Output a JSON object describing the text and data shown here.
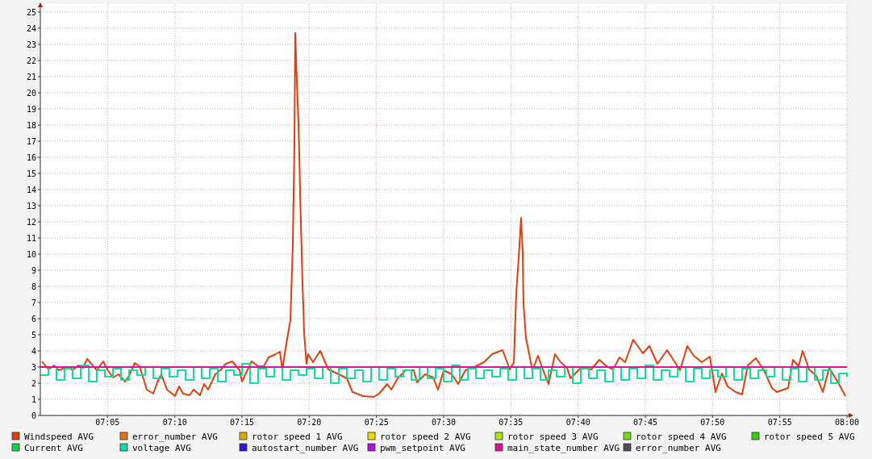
{
  "chart_data": {
    "type": "line",
    "xlim": [
      7,
      8
    ],
    "xticks": [
      {
        "value": 7.0833,
        "label": "07:05"
      },
      {
        "value": 7.1667,
        "label": "07:10"
      },
      {
        "value": 7.25,
        "label": "07:15"
      },
      {
        "value": 7.3333,
        "label": "07:20"
      },
      {
        "value": 7.4167,
        "label": "07:25"
      },
      {
        "value": 7.5,
        "label": "07:30"
      },
      {
        "value": 7.5833,
        "label": "07:35"
      },
      {
        "value": 7.6667,
        "label": "07:40"
      },
      {
        "value": 7.75,
        "label": "07:45"
      },
      {
        "value": 7.8333,
        "label": "07:50"
      },
      {
        "value": 7.9167,
        "label": "07:55"
      },
      {
        "value": 8,
        "label": "08:00"
      }
    ],
    "ylim": [
      0,
      25
    ],
    "yticks": [
      0,
      1,
      2,
      3,
      4,
      5,
      6,
      7,
      8,
      9,
      10,
      11,
      12,
      13,
      14,
      15,
      16,
      17,
      18,
      19,
      20,
      21,
      22,
      23,
      24,
      25
    ],
    "grid": true,
    "legend": "bottom",
    "line_style": "solid",
    "series": [
      {
        "name": "Windspeed AVG",
        "color": "#dd3f0f",
        "x": [
          7.002,
          7.01,
          7.017,
          7.023,
          7.033,
          7.04,
          7.047,
          7.053,
          7.058,
          7.065,
          7.07,
          7.078,
          7.083,
          7.09,
          7.097,
          7.105,
          7.11,
          7.117,
          7.123,
          7.132,
          7.14,
          7.145,
          7.15,
          7.157,
          7.167,
          7.172,
          7.177,
          7.185,
          7.19,
          7.198,
          7.203,
          7.208,
          7.217,
          7.223,
          7.23,
          7.238,
          7.247,
          7.25,
          7.257,
          7.262,
          7.27,
          7.277,
          7.283,
          7.292,
          7.297,
          7.3,
          7.305,
          7.31,
          7.313,
          7.315,
          7.316,
          7.318,
          7.32,
          7.321,
          7.322,
          7.324,
          7.325,
          7.326,
          7.327,
          7.33,
          7.332,
          7.338,
          7.347,
          7.357,
          7.37,
          7.38,
          7.387,
          7.4,
          7.413,
          7.42,
          7.43,
          7.435,
          7.443,
          7.453,
          7.463,
          7.467,
          7.477,
          7.487,
          7.493,
          7.5,
          7.51,
          7.518,
          7.527,
          7.54,
          7.55,
          7.56,
          7.573,
          7.582,
          7.587,
          7.59,
          7.593,
          7.596,
          7.598,
          7.599,
          7.602,
          7.61,
          7.617,
          7.623,
          7.63,
          7.638,
          7.645,
          7.653,
          7.657,
          7.67,
          7.683,
          7.693,
          7.702,
          7.71,
          7.718,
          7.725,
          7.735,
          7.747,
          7.755,
          7.765,
          7.777,
          7.793,
          7.802,
          7.81,
          7.82,
          7.83,
          7.837,
          7.845,
          7.852,
          7.862,
          7.87,
          7.877,
          7.887,
          7.897,
          7.907,
          7.913,
          7.927,
          7.933,
          7.94,
          7.945,
          7.953,
          7.962,
          7.97,
          7.978,
          7.99,
          7.998
        ],
        "values": [
          3.35,
          2.85,
          3.1,
          2.8,
          3.0,
          2.8,
          3.1,
          2.95,
          3.5,
          3.1,
          2.8,
          3.35,
          2.85,
          2.35,
          2.55,
          2.1,
          2.45,
          3.25,
          3.05,
          1.6,
          1.35,
          2.05,
          2.55,
          1.6,
          1.2,
          1.8,
          1.35,
          1.25,
          1.6,
          1.25,
          1.95,
          1.6,
          2.55,
          2.8,
          3.2,
          3.35,
          2.8,
          2.1,
          2.85,
          3.35,
          3.05,
          3.05,
          3.6,
          3.8,
          3.95,
          2.85,
          4.45,
          5.9,
          10.6,
          16.8,
          23.7,
          20.7,
          18.1,
          16.25,
          13.8,
          10.1,
          8.1,
          6.75,
          5.1,
          3.2,
          3.8,
          3.3,
          4.0,
          2.85,
          2.55,
          2.3,
          1.45,
          1.2,
          1.15,
          1.35,
          1.95,
          1.6,
          2.3,
          2.8,
          2.8,
          2.05,
          2.55,
          2.35,
          1.6,
          2.8,
          2.55,
          1.95,
          2.8,
          3.05,
          3.3,
          3.8,
          4.05,
          2.85,
          3.3,
          7.6,
          9.75,
          12.25,
          10.1,
          6.9,
          4.8,
          2.8,
          3.7,
          2.85,
          1.95,
          3.8,
          3.3,
          2.95,
          2.3,
          2.95,
          2.85,
          3.45,
          3.05,
          2.85,
          3.6,
          3.3,
          4.7,
          3.85,
          4.3,
          3.2,
          4.05,
          2.8,
          4.3,
          3.7,
          3.3,
          3.65,
          1.45,
          2.6,
          1.8,
          1.45,
          1.3,
          3.1,
          3.55,
          2.8,
          1.7,
          1.45,
          1.7,
          3.45,
          3.05,
          4.0,
          2.85,
          2.45,
          1.45,
          2.95,
          1.95,
          1.2
        ]
      },
      {
        "name": "error_number AVG",
        "color": "#e8720f"
      },
      {
        "name": "rotor speed 1 AVG",
        "color": "#e5a800"
      },
      {
        "name": "rotor speed 2 AVG",
        "color": "#e3e000"
      },
      {
        "name": "rotor speed 3 AVG",
        "color": "#b2e010"
      },
      {
        "name": "rotor speed 4 AVG",
        "color": "#72dd10"
      },
      {
        "name": "rotor speed 5 AVG",
        "color": "#33d010"
      },
      {
        "name": "Current AVG",
        "color": "#10d04c"
      },
      {
        "name": "voltage AVG",
        "type": "step",
        "color": "#0ddda0",
        "x": [
          7.0,
          7.01,
          7.02,
          7.03,
          7.04,
          7.05,
          7.06,
          7.07,
          7.08,
          7.09,
          7.1,
          7.11,
          7.12,
          7.13,
          7.14,
          7.15,
          7.16,
          7.17,
          7.18,
          7.19,
          7.2,
          7.21,
          7.22,
          7.23,
          7.24,
          7.25,
          7.26,
          7.27,
          7.28,
          7.29,
          7.3,
          7.31,
          7.32,
          7.33,
          7.34,
          7.35,
          7.36,
          7.37,
          7.38,
          7.39,
          7.4,
          7.41,
          7.42,
          7.43,
          7.44,
          7.45,
          7.46,
          7.47,
          7.48,
          7.49,
          7.5,
          7.51,
          7.52,
          7.53,
          7.54,
          7.55,
          7.56,
          7.57,
          7.58,
          7.59,
          7.6,
          7.61,
          7.62,
          7.63,
          7.64,
          7.65,
          7.66,
          7.67,
          7.68,
          7.69,
          7.7,
          7.71,
          7.72,
          7.73,
          7.74,
          7.75,
          7.76,
          7.77,
          7.78,
          7.79,
          7.8,
          7.81,
          7.82,
          7.83,
          7.84,
          7.85,
          7.86,
          7.87,
          7.88,
          7.89,
          7.9,
          7.91,
          7.92,
          7.93,
          7.94,
          7.95,
          7.96,
          7.97,
          7.98,
          7.99,
          8.0
        ],
        "values": [
          2.5,
          3.0,
          2.2,
          2.9,
          2.3,
          3.1,
          2.1,
          2.8,
          2.4,
          2.9,
          2.2,
          2.8,
          2.5,
          3.0,
          2.3,
          2.9,
          2.4,
          2.8,
          2.2,
          3.0,
          2.3,
          2.9,
          2.1,
          2.8,
          2.5,
          3.2,
          2.0,
          2.9,
          2.4,
          3.0,
          2.2,
          2.8,
          2.5,
          2.9,
          2.3,
          3.0,
          2.0,
          2.9,
          2.3,
          2.8,
          2.1,
          3.0,
          2.2,
          2.9,
          2.4,
          2.8,
          2.2,
          3.0,
          2.3,
          2.9,
          2.1,
          3.1,
          2.2,
          2.9,
          2.3,
          2.8,
          2.4,
          2.9,
          2.2,
          3.0,
          2.3,
          2.9,
          2.2,
          2.8,
          2.4,
          3.0,
          2.0,
          2.9,
          2.3,
          2.8,
          2.1,
          3.0,
          2.2,
          2.9,
          2.3,
          3.1,
          2.2,
          2.8,
          2.4,
          3.0,
          2.1,
          2.9,
          2.3,
          2.8,
          2.4,
          3.0,
          2.2,
          2.9,
          2.3,
          2.8,
          2.4,
          3.0,
          2.2,
          2.9,
          2.1,
          3.0,
          2.2,
          2.8,
          2.0,
          2.6,
          2.4
        ]
      },
      {
        "name": "autostart_number AVG",
        "color": "#3010e0"
      },
      {
        "name": "pwm_setpoint AVG",
        "color": "#b010e0"
      },
      {
        "name": "main_state_number AVG",
        "color": "#e0109a",
        "x": [
          7,
          8
        ],
        "values": [
          3,
          3
        ]
      },
      {
        "name": "error_number AVG",
        "color": "#505050"
      }
    ]
  }
}
